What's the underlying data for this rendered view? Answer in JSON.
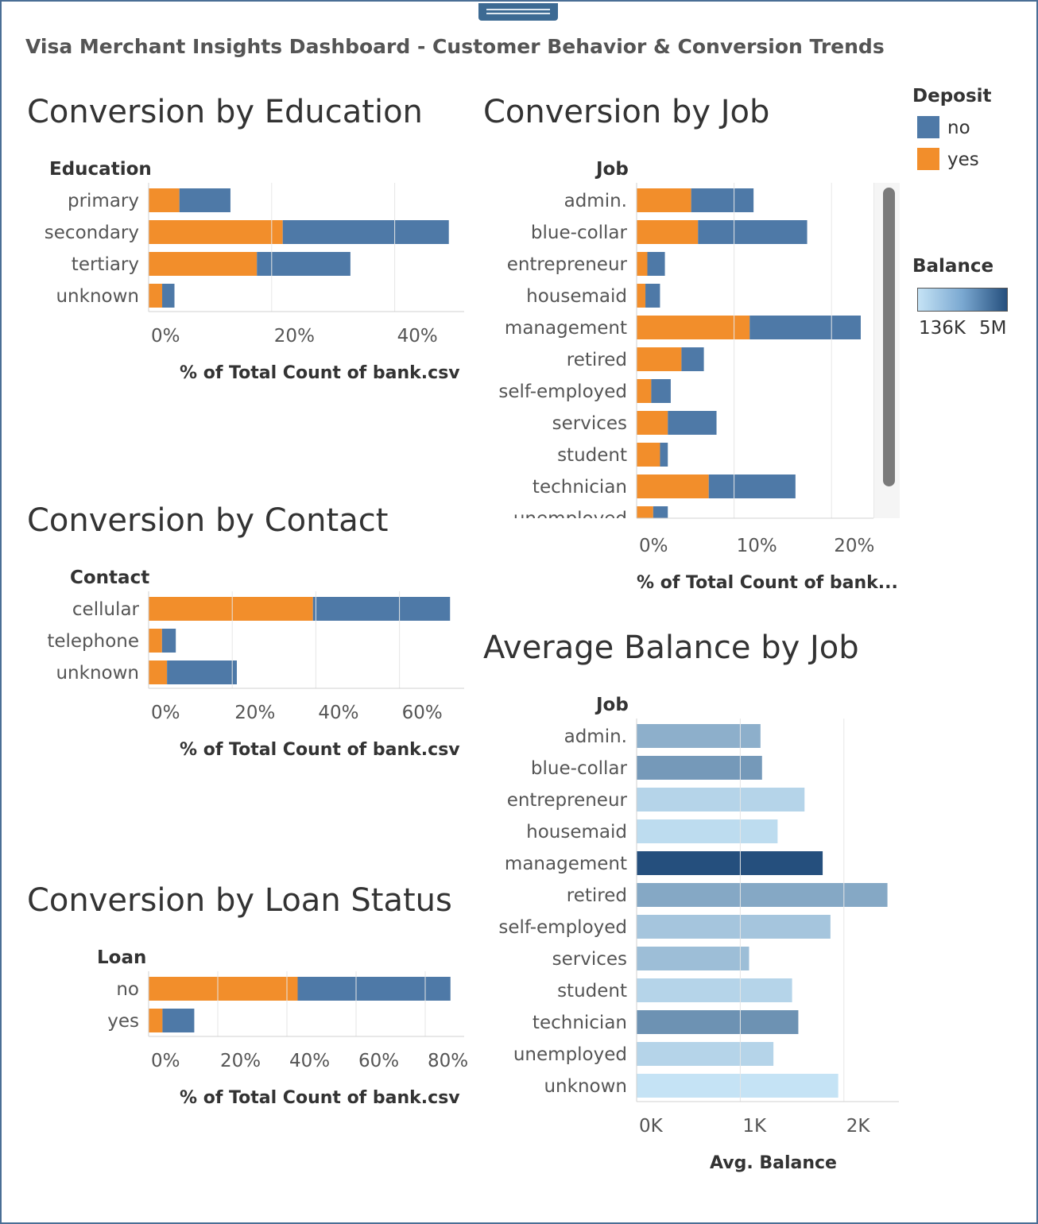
{
  "dashboard": {
    "title": "Visa Merchant Insights Dashboard - Customer Behavior & Conversion Trends"
  },
  "colors": {
    "no": "#4e79a7",
    "yes": "#f28e2b",
    "balance_low": "#c5e3f5",
    "balance_high": "#254f7d"
  },
  "legend": {
    "deposit_title": "Deposit",
    "deposit_items": [
      {
        "label": "no",
        "color": "#4e79a7"
      },
      {
        "label": "yes",
        "color": "#f28e2b"
      }
    ],
    "balance_title": "Balance",
    "balance_min": "136K",
    "balance_max": "5M"
  },
  "charts": {
    "education": {
      "title": "Conversion by Education",
      "axis_header": "Education",
      "xlabel": "% of Total Count of bank.csv",
      "ticks": [
        "0%",
        "20%",
        "40%"
      ]
    },
    "job": {
      "title": "Conversion by Job",
      "axis_header": "Job",
      "xlabel": "% of Total Count of bank...",
      "ticks": [
        "0%",
        "10%",
        "20%"
      ]
    },
    "contact": {
      "title": "Conversion by Contact",
      "axis_header": "Contact",
      "xlabel": "% of Total Count of bank.csv",
      "ticks": [
        "0%",
        "20%",
        "40%",
        "60%"
      ]
    },
    "loan": {
      "title": "Conversion by Loan Status",
      "axis_header": "Loan",
      "xlabel": "% of Total Count of bank.csv",
      "ticks": [
        "0%",
        "20%",
        "40%",
        "60%",
        "80%"
      ]
    },
    "balance": {
      "title": "Average Balance by Job",
      "axis_header": "Job",
      "xlabel": "Avg. Balance",
      "ticks": [
        "0K",
        "1K",
        "2K"
      ]
    }
  },
  "chart_data": [
    {
      "id": "education",
      "type": "bar",
      "orientation": "horizontal",
      "stacked": true,
      "categories": [
        "primary",
        "secondary",
        "tertiary",
        "unknown"
      ],
      "series": [
        {
          "name": "yes",
          "values": [
            5.0,
            21.8,
            17.6,
            2.2
          ]
        },
        {
          "name": "no",
          "values": [
            8.3,
            27.0,
            15.2,
            2.0
          ]
        }
      ],
      "xlim": [
        0,
        51
      ]
    },
    {
      "id": "job",
      "type": "bar",
      "orientation": "horizontal",
      "stacked": true,
      "categories": [
        "admin.",
        "blue-collar",
        "entrepreneur",
        "housemaid",
        "management",
        "retired",
        "self-employed",
        "services",
        "student",
        "technician",
        "unemployed"
      ],
      "series": [
        {
          "name": "yes",
          "values": [
            5.6,
            6.3,
            1.1,
            0.9,
            11.6,
            4.6,
            1.5,
            3.2,
            2.4,
            7.4,
            1.7
          ]
        },
        {
          "name": "no",
          "values": [
            6.4,
            11.2,
            1.8,
            1.5,
            11.4,
            2.3,
            2.0,
            5.0,
            0.8,
            8.9,
            1.5
          ]
        }
      ],
      "xlim": [
        0,
        26
      ]
    },
    {
      "id": "contact",
      "type": "bar",
      "orientation": "horizontal",
      "stacked": true,
      "categories": [
        "cellular",
        "telephone",
        "unknown"
      ],
      "series": [
        {
          "name": "yes",
          "values": [
            39.3,
            3.2,
            4.4
          ]
        },
        {
          "name": "no",
          "values": [
            32.8,
            3.3,
            16.7
          ]
        }
      ],
      "xlim": [
        0,
        76
      ]
    },
    {
      "id": "loan",
      "type": "bar",
      "orientation": "horizontal",
      "stacked": true,
      "categories": [
        "no",
        "yes"
      ],
      "series": [
        {
          "name": "yes",
          "values": [
            43.1,
            4.0
          ]
        },
        {
          "name": "no",
          "values": [
            44.2,
            9.2
          ]
        }
      ],
      "xlim": [
        0,
        91
      ]
    },
    {
      "id": "balance",
      "type": "bar",
      "orientation": "horizontal",
      "categories": [
        "admin.",
        "blue-collar",
        "entrepreneur",
        "housemaid",
        "management",
        "retired",
        "self-employed",
        "services",
        "student",
        "technician",
        "unemployed",
        "unknown"
      ],
      "values": [
        1195,
        1210,
        1620,
        1360,
        1795,
        2420,
        1870,
        1085,
        1500,
        1560,
        1320,
        1945
      ],
      "color_values": [
        0.35,
        0.5,
        0.1,
        0.05,
        1.0,
        0.4,
        0.2,
        0.25,
        0.1,
        0.55,
        0.1,
        0.0
      ],
      "xlim": [
        0,
        2550
      ],
      "xlabel": "Avg. Balance"
    }
  ]
}
